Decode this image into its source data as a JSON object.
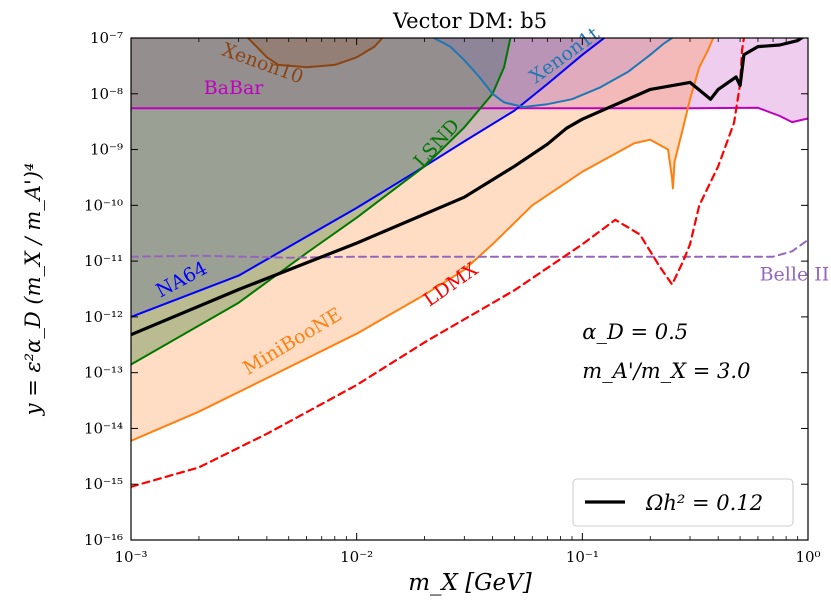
{
  "chart_data": {
    "type": "line",
    "title": "Vector DM: b5",
    "xlabel": "m_X [GeV]",
    "ylabel": "y = ε²α_D (m_X / m_A')⁴",
    "xscale": "log",
    "yscale": "log",
    "xlim": [
      0.001,
      1
    ],
    "ylim": [
      1e-16,
      1e-07
    ],
    "grid": false,
    "x_ticks": [
      {
        "value": 0.001,
        "label": "10⁻³"
      },
      {
        "value": 0.01,
        "label": "10⁻²"
      },
      {
        "value": 0.1,
        "label": "10⁻¹"
      },
      {
        "value": 1,
        "label": "10⁰"
      }
    ],
    "y_ticks": [
      {
        "value": 1e-16,
        "label": "10⁻¹⁶"
      },
      {
        "value": 1e-15,
        "label": "10⁻¹⁵"
      },
      {
        "value": 1e-14,
        "label": "10⁻¹⁴"
      },
      {
        "value": 1e-13,
        "label": "10⁻¹³"
      },
      {
        "value": 1e-12,
        "label": "10⁻¹²"
      },
      {
        "value": 1e-11,
        "label": "10⁻¹¹"
      },
      {
        "value": 1e-10,
        "label": "10⁻¹⁰"
      },
      {
        "value": 1e-09,
        "label": "10⁻⁹"
      },
      {
        "value": 1e-08,
        "label": "10⁻⁸"
      },
      {
        "value": 1e-07,
        "label": "10⁻⁷"
      }
    ],
    "annotations": [
      {
        "text": "α_D = 0.5",
        "x": 0.1,
        "y": 4e-13
      },
      {
        "text": "m_A'/m_X = 3.0",
        "x": 0.1,
        "y": 8e-14
      }
    ],
    "legend": {
      "position": "bottom-right",
      "entries": [
        {
          "label": "Ωh² = 0.12",
          "color": "#000000"
        }
      ]
    },
    "series": [
      {
        "name": "Ωh² = 0.12",
        "color": "#000000",
        "style": "solid",
        "width": 3.2,
        "points": [
          [
            0.001,
            4.8e-13
          ],
          [
            0.003,
            3.1e-12
          ],
          [
            0.01,
            2.1e-11
          ],
          [
            0.03,
            1.4e-10
          ],
          [
            0.05,
            5e-10
          ],
          [
            0.07,
            1.25e-09
          ],
          [
            0.085,
            2.4e-09
          ],
          [
            0.1,
            3.5e-09
          ],
          [
            0.2,
            1.2e-08
          ],
          [
            0.3,
            1.6e-08
          ],
          [
            0.37,
            8e-09
          ],
          [
            0.4,
            1.2e-08
          ],
          [
            0.48,
            2e-08
          ],
          [
            0.5,
            1.4e-08
          ],
          [
            0.52,
            5e-08
          ],
          [
            0.6,
            7e-08
          ],
          [
            0.75,
            7.5e-08
          ],
          [
            0.9,
            9e-08
          ],
          [
            1,
            1.2e-07
          ]
        ]
      },
      {
        "name": "BaBar",
        "color": "#c000c0",
        "style": "solid",
        "width": 2,
        "points": [
          [
            0.001,
            5.5e-09
          ],
          [
            0.3,
            5.5e-09
          ],
          [
            0.6,
            5.6e-09
          ],
          [
            0.75,
            4e-09
          ],
          [
            0.85,
            3.1e-09
          ],
          [
            1,
            3.6e-09
          ]
        ]
      },
      {
        "name": "NA64",
        "color": "#0000ff",
        "style": "solid",
        "width": 2,
        "points": [
          [
            0.001,
            1e-12
          ],
          [
            0.003,
            5.5e-12
          ],
          [
            0.005,
            1.8e-11
          ],
          [
            0.01,
            9e-11
          ],
          [
            0.02,
            5e-10
          ],
          [
            0.03,
            1.4e-09
          ],
          [
            0.05,
            5e-09
          ],
          [
            0.07,
            1.5e-08
          ],
          [
            0.1,
            5e-08
          ],
          [
            0.125,
            1e-07
          ]
        ]
      },
      {
        "name": "LSND",
        "color": "#007700",
        "style": "solid",
        "width": 2,
        "points": [
          [
            0.001,
            1.4e-13
          ],
          [
            0.003,
            1.8e-12
          ],
          [
            0.006,
            1.4e-11
          ],
          [
            0.01,
            6e-11
          ],
          [
            0.02,
            5e-10
          ],
          [
            0.03,
            2.5e-09
          ],
          [
            0.04,
            1e-08
          ],
          [
            0.045,
            3e-08
          ],
          [
            0.048,
            1e-07
          ]
        ]
      },
      {
        "name": "MiniBooNE",
        "color": "#ff8010",
        "style": "solid",
        "width": 2,
        "points": [
          [
            0.001,
            6e-15
          ],
          [
            0.002,
            2e-14
          ],
          [
            0.004,
            8e-14
          ],
          [
            0.01,
            5e-13
          ],
          [
            0.02,
            2.5e-12
          ],
          [
            0.03,
            7e-12
          ],
          [
            0.04,
            2e-11
          ],
          [
            0.06,
            1e-10
          ],
          [
            0.1,
            4e-10
          ],
          [
            0.17,
            1.3e-09
          ],
          [
            0.2,
            1.5e-09
          ],
          [
            0.24,
            1e-09
          ],
          [
            0.25,
            3e-10
          ],
          [
            0.252,
            2e-10
          ],
          [
            0.256,
            6e-10
          ],
          [
            0.28,
            2.5e-09
          ],
          [
            0.3,
            8e-09
          ],
          [
            0.33,
            3e-08
          ],
          [
            0.36,
            6e-08
          ],
          [
            0.38,
            1e-07
          ]
        ]
      },
      {
        "name": "Xenon10",
        "color": "#8b4513",
        "style": "solid",
        "width": 2,
        "points": [
          [
            0.0033,
            1e-07
          ],
          [
            0.0036,
            7e-08
          ],
          [
            0.004,
            4.5e-08
          ],
          [
            0.0045,
            3.3e-08
          ],
          [
            0.006,
            3e-08
          ],
          [
            0.008,
            3.3e-08
          ],
          [
            0.01,
            4.5e-08
          ],
          [
            0.012,
            7e-08
          ],
          [
            0.013,
            1e-07
          ]
        ]
      },
      {
        "name": "Xenon1t",
        "color": "#1f77b4",
        "style": "solid",
        "width": 2,
        "points": [
          [
            0.022,
            1e-07
          ],
          [
            0.026,
            7e-08
          ],
          [
            0.03,
            4e-08
          ],
          [
            0.035,
            2e-08
          ],
          [
            0.04,
            1e-08
          ],
          [
            0.045,
            7e-09
          ],
          [
            0.055,
            5.8e-09
          ],
          [
            0.07,
            6.5e-09
          ],
          [
            0.09,
            8e-09
          ],
          [
            0.12,
            1.3e-08
          ],
          [
            0.16,
            2.5e-08
          ],
          [
            0.2,
            5e-08
          ],
          [
            0.23,
            8e-08
          ],
          [
            0.25,
            1e-07
          ]
        ]
      },
      {
        "name": "Belle II",
        "color": "#9467bd",
        "style": "dashed",
        "width": 2,
        "points": [
          [
            0.001,
            1.2e-11
          ],
          [
            0.002,
            1.25e-11
          ],
          [
            0.005,
            1.15e-11
          ],
          [
            0.01,
            1.2e-11
          ],
          [
            0.03,
            1.2e-11
          ],
          [
            0.1,
            1.2e-11
          ],
          [
            0.3,
            1.2e-11
          ],
          [
            0.7,
            1.2e-11
          ],
          [
            0.85,
            1.5e-11
          ],
          [
            1,
            2.4e-11
          ]
        ]
      },
      {
        "name": "LDMX",
        "color": "#ff0000",
        "style": "dashed",
        "width": 2.2,
        "points": [
          [
            0.001,
            9e-16
          ],
          [
            0.002,
            2e-15
          ],
          [
            0.004,
            8e-15
          ],
          [
            0.01,
            6e-14
          ],
          [
            0.02,
            3.5e-13
          ],
          [
            0.05,
            3e-12
          ],
          [
            0.1,
            2e-11
          ],
          [
            0.14,
            5.5e-11
          ],
          [
            0.18,
            3e-11
          ],
          [
            0.22,
            8e-12
          ],
          [
            0.25,
            3.8e-12
          ],
          [
            0.28,
            1e-11
          ],
          [
            0.3,
            2e-11
          ],
          [
            0.33,
            1e-10
          ],
          [
            0.4,
            5e-10
          ],
          [
            0.47,
            3e-09
          ],
          [
            0.5,
            1.5e-08
          ],
          [
            0.51,
            6e-08
          ],
          [
            0.52,
            1e-07
          ]
        ]
      }
    ],
    "regions": [
      {
        "name": "BaBar-region",
        "color": "#d070d0",
        "opacity": 0.35,
        "points": [
          [
            0.001,
            5.5e-09
          ],
          [
            0.3,
            5.5e-09
          ],
          [
            0.6,
            5.6e-09
          ],
          [
            0.75,
            4e-09
          ],
          [
            0.85,
            3.1e-09
          ],
          [
            1,
            3.6e-09
          ],
          [
            1,
            1e-07
          ],
          [
            0.001,
            1e-07
          ]
        ]
      },
      {
        "name": "MiniBooNE-region",
        "color": "#ff9040",
        "opacity": 0.3,
        "points": [
          [
            0.001,
            6e-15
          ],
          [
            0.002,
            2e-14
          ],
          [
            0.004,
            8e-14
          ],
          [
            0.01,
            5e-13
          ],
          [
            0.02,
            2.5e-12
          ],
          [
            0.03,
            7e-12
          ],
          [
            0.04,
            2e-11
          ],
          [
            0.06,
            1e-10
          ],
          [
            0.1,
            4e-10
          ],
          [
            0.17,
            1.3e-09
          ],
          [
            0.2,
            1.5e-09
          ],
          [
            0.24,
            1e-09
          ],
          [
            0.25,
            3e-10
          ],
          [
            0.252,
            2e-10
          ],
          [
            0.256,
            6e-10
          ],
          [
            0.28,
            2.5e-09
          ],
          [
            0.3,
            8e-09
          ],
          [
            0.33,
            3e-08
          ],
          [
            0.36,
            6e-08
          ],
          [
            0.38,
            1e-07
          ],
          [
            0.001,
            1e-07
          ]
        ]
      },
      {
        "name": "LSND-region",
        "color": "#1a6e1a",
        "opacity": 0.3,
        "points": [
          [
            0.001,
            1.4e-13
          ],
          [
            0.003,
            1.8e-12
          ],
          [
            0.006,
            1.4e-11
          ],
          [
            0.01,
            6e-11
          ],
          [
            0.02,
            5e-10
          ],
          [
            0.03,
            2.5e-09
          ],
          [
            0.04,
            1e-08
          ],
          [
            0.045,
            3e-08
          ],
          [
            0.048,
            1e-07
          ],
          [
            0.001,
            1e-07
          ]
        ]
      },
      {
        "name": "NA64-region",
        "color": "#3f4fa0",
        "opacity": 0.25,
        "points": [
          [
            0.001,
            1e-12
          ],
          [
            0.003,
            5.5e-12
          ],
          [
            0.005,
            1.8e-11
          ],
          [
            0.01,
            9e-11
          ],
          [
            0.02,
            5e-10
          ],
          [
            0.03,
            1.4e-09
          ],
          [
            0.05,
            5e-09
          ],
          [
            0.07,
            1.5e-08
          ],
          [
            0.1,
            5e-08
          ],
          [
            0.125,
            1e-07
          ],
          [
            0.001,
            1e-07
          ]
        ]
      },
      {
        "name": "Xenon10-region",
        "color": "#8b4513",
        "opacity": 0.2,
        "points": [
          [
            0.0033,
            1e-07
          ],
          [
            0.0036,
            7e-08
          ],
          [
            0.004,
            4.5e-08
          ],
          [
            0.0045,
            3.3e-08
          ],
          [
            0.006,
            3e-08
          ],
          [
            0.008,
            3.3e-08
          ],
          [
            0.01,
            4.5e-08
          ],
          [
            0.012,
            7e-08
          ],
          [
            0.013,
            1e-07
          ]
        ]
      },
      {
        "name": "Xenon1t-region",
        "color": "#6a5acd",
        "opacity": 0.15,
        "points": [
          [
            0.022,
            1e-07
          ],
          [
            0.026,
            7e-08
          ],
          [
            0.03,
            4e-08
          ],
          [
            0.035,
            2e-08
          ],
          [
            0.04,
            1e-08
          ],
          [
            0.045,
            7e-09
          ],
          [
            0.055,
            5.8e-09
          ],
          [
            0.07,
            6.5e-09
          ],
          [
            0.09,
            8e-09
          ],
          [
            0.12,
            1.3e-08
          ],
          [
            0.16,
            2.5e-08
          ],
          [
            0.2,
            5e-08
          ],
          [
            0.23,
            8e-08
          ],
          [
            0.25,
            1e-07
          ]
        ]
      }
    ],
    "curve_labels": [
      {
        "text": "BaBar",
        "color": "#c000c0",
        "x": 0.0021,
        "y": 1e-08,
        "rotate": 0
      },
      {
        "text": "Xenon10",
        "color": "#8b4513",
        "x": 0.0025,
        "y": 5e-08,
        "rotate": 20
      },
      {
        "text": "Xenon1t",
        "color": "#1f77b4",
        "x": 0.062,
        "y": 1.5e-08,
        "rotate": -36
      },
      {
        "text": "LSND",
        "color": "#007700",
        "x": 0.0195,
        "y": 4.5e-10,
        "rotate": -48
      },
      {
        "text": "NA64",
        "color": "#0000ff",
        "x": 0.00135,
        "y": 2.2e-12,
        "rotate": -28
      },
      {
        "text": "MiniBooNE",
        "color": "#ff8010",
        "x": 0.0033,
        "y": 9e-14,
        "rotate": -31
      },
      {
        "text": "LDMX",
        "color": "#ff0000",
        "x": 0.021,
        "y": 1.5e-12,
        "rotate": -35
      },
      {
        "text": "Belle II",
        "color": "#9467bd",
        "x": 0.61,
        "y": 4.5e-12,
        "rotate": 0
      }
    ]
  }
}
